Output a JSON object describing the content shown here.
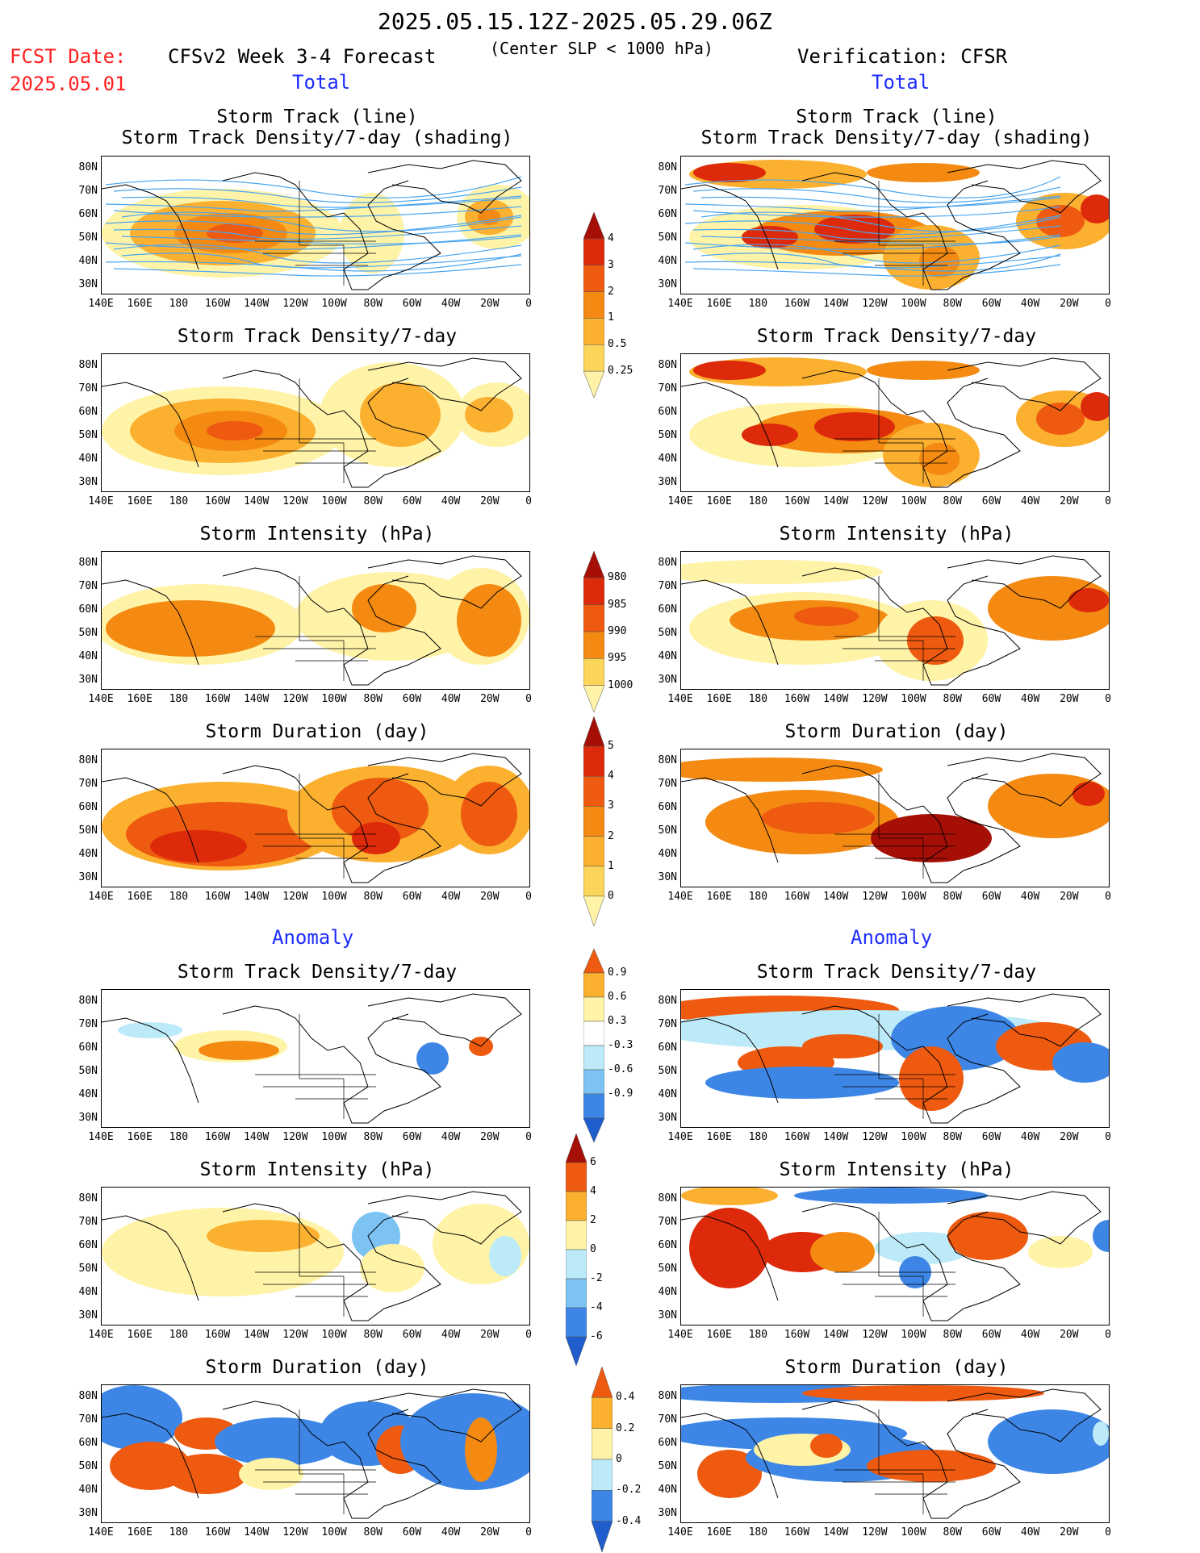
{
  "header": {
    "date_range": "2025.05.15.12Z-2025.05.29.06Z",
    "fcst_label": "FCST Date:",
    "fcst_date": "2025.05.01",
    "forecast_title": "CFSv2 Week 3-4 Forecast",
    "center_slp": "(Center SLP < 1000 hPa)",
    "verification": "Verification: CFSR"
  },
  "sections": {
    "total": "Total",
    "anomaly": "Anomaly"
  },
  "panel_titles": {
    "track_line": "Storm Track (line)",
    "track_density_shading": "Storm Track Density/7-day (shading)",
    "track_density": "Storm Track Density/7-day",
    "intensity": "Storm Intensity (hPa)",
    "duration": "Storm Duration (day)"
  },
  "axes": {
    "lat_ticks": [
      "80N",
      "70N",
      "60N",
      "50N",
      "40N",
      "30N"
    ],
    "lon_ticks": [
      "140E",
      "160E",
      "180",
      "160W",
      "140W",
      "120W",
      "100W",
      "80W",
      "60W",
      "40W",
      "20W",
      "0"
    ]
  },
  "colors": {
    "yellow_light": "#fff3a8",
    "yellow": "#fbd45a",
    "orange_light": "#fbb030",
    "orange": "#f48a12",
    "red_orange": "#ee5a0f",
    "red": "#dc2a0a",
    "dark_red": "#a60f05",
    "blue_light": "#bdeaf8",
    "blue_mid": "#7cc3f3",
    "blue": "#3d86e6",
    "blue_dark": "#1f5ccc",
    "track_line": "#4aa6f0"
  },
  "chart_data": [
    {
      "id": "colorbar_density",
      "type": "colorbar",
      "levels": [
        "0.25",
        "0.5",
        "1",
        "2",
        "3",
        "4"
      ],
      "colors": [
        "#fff3a8",
        "#fbd45a",
        "#fbb030",
        "#f48a12",
        "#ee5a0f",
        "#dc2a0a",
        "#a60f05"
      ]
    },
    {
      "id": "colorbar_intensity",
      "type": "colorbar",
      "levels": [
        "1000",
        "995",
        "990",
        "985",
        "980"
      ],
      "colors": [
        "#fff3a8",
        "#fbd45a",
        "#f48a12",
        "#ee5a0f",
        "#dc2a0a",
        "#a60f05"
      ]
    },
    {
      "id": "colorbar_duration",
      "type": "colorbar",
      "levels": [
        "0",
        "1",
        "2",
        "3",
        "4",
        "5"
      ],
      "colors": [
        "#fff3a8",
        "#fbd45a",
        "#fbb030",
        "#f48a12",
        "#ee5a0f",
        "#dc2a0a",
        "#a60f05"
      ]
    },
    {
      "id": "colorbar_density_anom",
      "type": "colorbar",
      "levels": [
        "-0.9",
        "-0.6",
        "-0.3",
        "0.3",
        "0.6",
        "0.9"
      ],
      "colors": [
        "#1f5ccc",
        "#3d86e6",
        "#7cc3f3",
        "#bdeaf8",
        "#ffffff",
        "#fff3a8",
        "#fbb030",
        "#ee5a0f"
      ]
    },
    {
      "id": "colorbar_intensity_anom",
      "type": "colorbar",
      "levels": [
        "-6",
        "-4",
        "-2",
        "0",
        "2",
        "4",
        "6"
      ],
      "colors": [
        "#1f5ccc",
        "#3d86e6",
        "#7cc3f3",
        "#bdeaf8",
        "#fff3a8",
        "#fbb030",
        "#ee5a0f",
        "#a60f05"
      ]
    },
    {
      "id": "colorbar_duration_anom",
      "type": "colorbar",
      "levels": [
        "-0.4",
        "-0.2",
        "0",
        "0.2",
        "0.4"
      ],
      "colors": [
        "#1f5ccc",
        "#3d86e6",
        "#bdeaf8",
        "#fff3a8",
        "#fbb030",
        "#ee5a0f"
      ]
    }
  ]
}
